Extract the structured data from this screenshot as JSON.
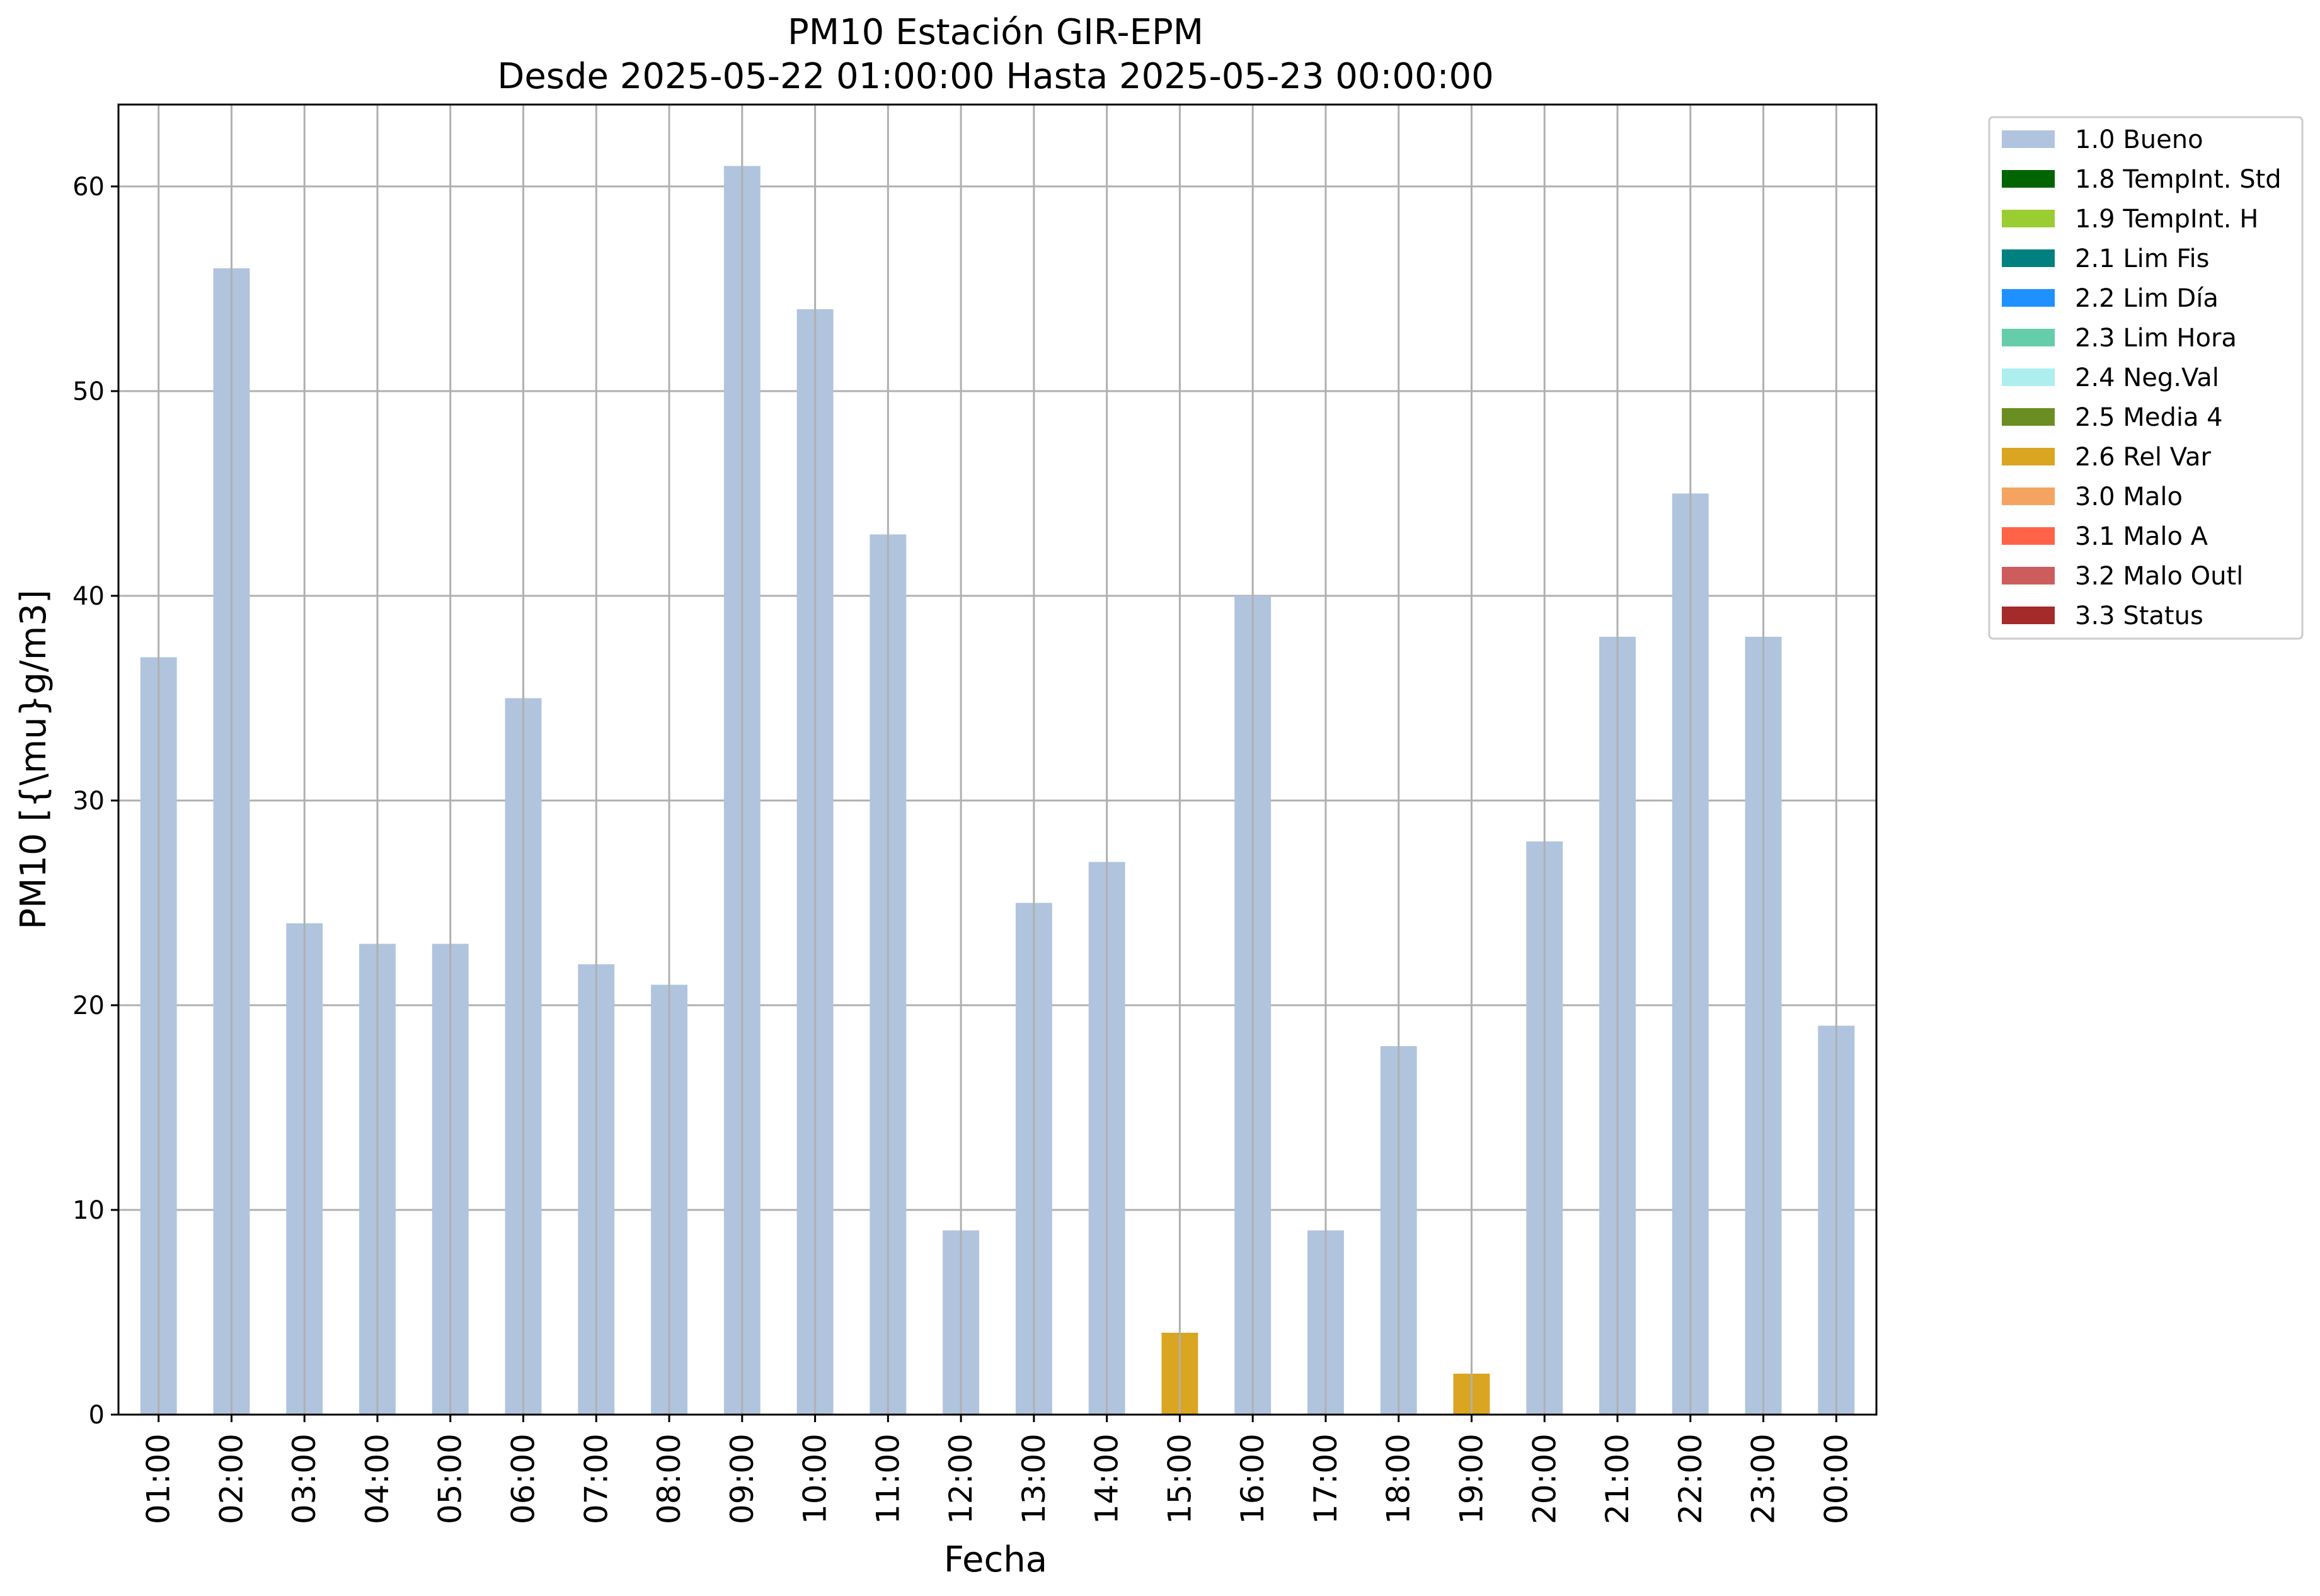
{
  "chart_data": {
    "type": "bar",
    "title": "PM10 Estación GIR-EPM",
    "subtitle": "Desde 2025-05-22 01:00:00 Hasta 2025-05-23 00:00:00",
    "xlabel": "Fecha",
    "ylabel": "PM10 [{\\mu}g/m3]",
    "ylim": [
      0,
      64
    ],
    "yticks": [
      0,
      10,
      20,
      30,
      40,
      50,
      60
    ],
    "grid": true,
    "legend_position": "outside-top-right",
    "categories": [
      "01:00",
      "02:00",
      "03:00",
      "04:00",
      "05:00",
      "06:00",
      "07:00",
      "08:00",
      "09:00",
      "10:00",
      "11:00",
      "12:00",
      "13:00",
      "14:00",
      "15:00",
      "16:00",
      "17:00",
      "18:00",
      "19:00",
      "20:00",
      "21:00",
      "22:00",
      "23:00",
      "00:00"
    ],
    "values": [
      37,
      56,
      24,
      23,
      23,
      35,
      22,
      21,
      61,
      54,
      43,
      9,
      25,
      27,
      4,
      40,
      9,
      18,
      2,
      28,
      38,
      45,
      38,
      19
    ],
    "bar_flags": [
      "1.0 Bueno",
      "1.0 Bueno",
      "1.0 Bueno",
      "1.0 Bueno",
      "1.0 Bueno",
      "1.0 Bueno",
      "1.0 Bueno",
      "1.0 Bueno",
      "1.0 Bueno",
      "1.0 Bueno",
      "1.0 Bueno",
      "1.0 Bueno",
      "1.0 Bueno",
      "1.0 Bueno",
      "2.6 Rel Var",
      "1.0 Bueno",
      "1.0 Bueno",
      "1.0 Bueno",
      "2.6 Rel Var",
      "1.0 Bueno",
      "1.0 Bueno",
      "1.0 Bueno",
      "1.0 Bueno",
      "1.0 Bueno"
    ],
    "legend": [
      {
        "label": "1.0 Bueno",
        "color": "#b0c4de"
      },
      {
        "label": "1.8 TempInt. Std",
        "color": "#006400"
      },
      {
        "label": "1.9 TempInt. H",
        "color": "#9acd32"
      },
      {
        "label": "2.1 Lim Fis",
        "color": "#008080"
      },
      {
        "label": "2.2 Lim Día",
        "color": "#1e90ff"
      },
      {
        "label": "2.3 Lim Hora",
        "color": "#66cdaa"
      },
      {
        "label": "2.4 Neg.Val",
        "color": "#afeeee"
      },
      {
        "label": "2.5 Media 4",
        "color": "#6b8e23"
      },
      {
        "label": "2.6 Rel Var",
        "color": "#daa520"
      },
      {
        "label": "3.0 Malo",
        "color": "#f4a460"
      },
      {
        "label": "3.1 Malo A",
        "color": "#ff6347"
      },
      {
        "label": "3.2 Malo Outl",
        "color": "#cd5c5c"
      },
      {
        "label": "3.3 Status",
        "color": "#a52a2a"
      }
    ]
  }
}
